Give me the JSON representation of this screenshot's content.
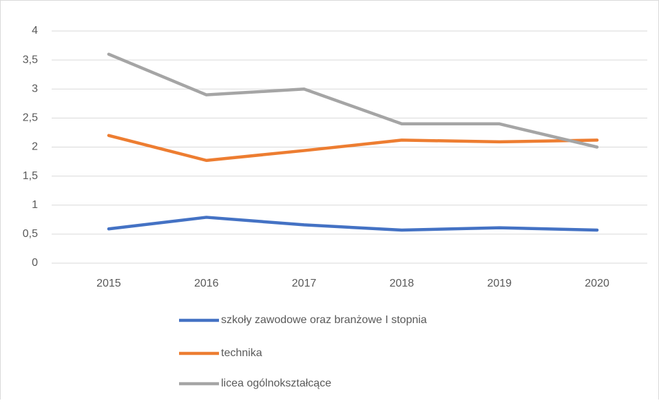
{
  "chart_data": {
    "type": "line",
    "categories": [
      "2015",
      "2016",
      "2017",
      "2018",
      "2019",
      "2020"
    ],
    "series": [
      {
        "name": "szkoły zawodowe oraz branżowe I stopnia",
        "color": "#4472c4",
        "values": [
          0.59,
          0.79,
          0.66,
          0.57,
          0.61,
          0.57
        ]
      },
      {
        "name": "technika",
        "color": "#ed7d31",
        "values": [
          2.2,
          1.77,
          1.94,
          2.12,
          2.09,
          2.12
        ]
      },
      {
        "name": "licea ogólnokształcące",
        "color": "#a5a5a5",
        "values": [
          3.6,
          2.9,
          3.0,
          2.4,
          2.4,
          2.0
        ]
      }
    ],
    "ylim": [
      0,
      4
    ],
    "yticks": [
      0,
      {
        "value": 0.5,
        "label": "0,5"
      },
      1,
      {
        "value": 1.5,
        "label": "1,5"
      },
      2,
      {
        "value": 2.5,
        "label": "2,5"
      },
      3,
      {
        "value": 3.5,
        "label": "3,5"
      },
      4
    ],
    "grid": true,
    "legend": "bottom"
  }
}
